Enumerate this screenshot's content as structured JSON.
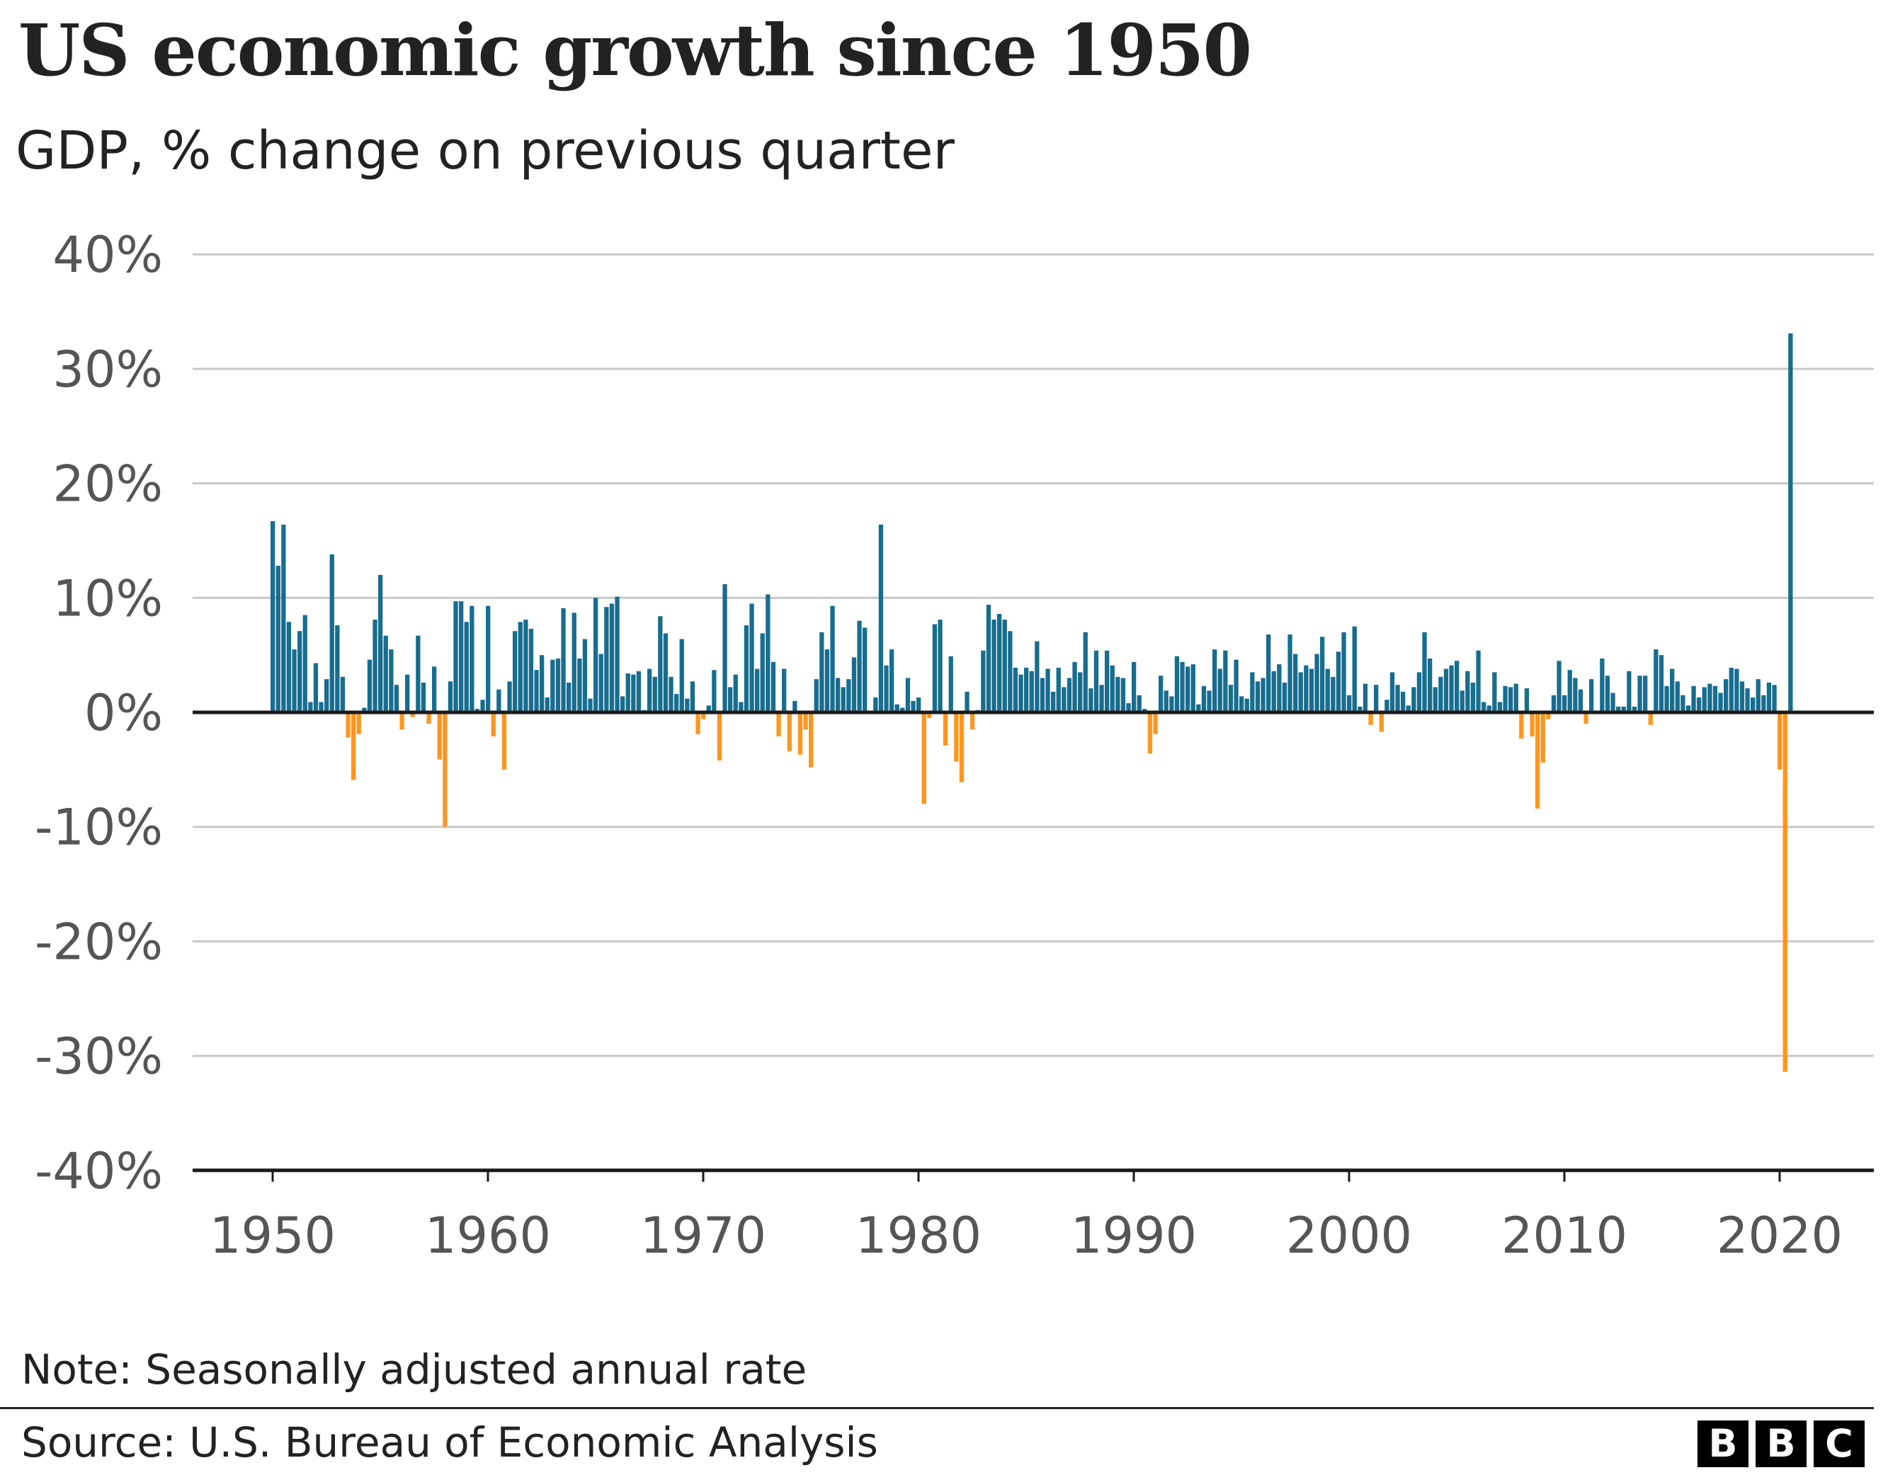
{
  "chart_data": {
    "type": "bar",
    "title": "US economic growth since 1950",
    "subtitle": "GDP, % change on previous quarter",
    "xlabel": "",
    "ylabel": "",
    "ylim": [
      -40,
      40
    ],
    "yticks": [
      "40%",
      "30%",
      "20%",
      "10%",
      "0%",
      "-10%",
      "-20%",
      "-30%",
      "-40%"
    ],
    "ytick_values": [
      40,
      30,
      20,
      10,
      0,
      -10,
      -20,
      -30,
      -40
    ],
    "xticks": [
      "1950",
      "1960",
      "1970",
      "1980",
      "1990",
      "2000",
      "2010",
      "2020"
    ],
    "grid": true,
    "start": "1950 Q1",
    "frequency": "quarterly",
    "colors": {
      "positive": "#176d8e",
      "negative": "#fd961f",
      "grid": "#c8c8c8",
      "axis": "#1a1a1a"
    },
    "values": [
      16.7,
      12.8,
      16.4,
      7.9,
      5.5,
      7.1,
      8.5,
      0.9,
      4.3,
      0.9,
      2.9,
      13.8,
      7.6,
      3.1,
      -2.2,
      -5.9,
      -1.9,
      0.4,
      4.6,
      8.1,
      12.0,
      6.7,
      5.5,
      2.4,
      -1.5,
      3.3,
      -0.4,
      6.7,
      2.6,
      -1.0,
      4.0,
      -4.1,
      -10.0,
      2.7,
      9.7,
      9.7,
      7.9,
      9.3,
      0.3,
      1.1,
      9.3,
      -2.1,
      2.0,
      -5.0,
      2.7,
      7.1,
      7.9,
      8.1,
      7.3,
      3.7,
      5.0,
      1.3,
      4.6,
      4.7,
      9.1,
      2.6,
      8.7,
      4.7,
      6.4,
      1.2,
      10.0,
      5.1,
      9.2,
      9.5,
      10.1,
      1.4,
      3.4,
      3.3,
      3.6,
      0.2,
      3.8,
      3.1,
      8.4,
      6.9,
      3.1,
      1.6,
      6.4,
      1.2,
      2.7,
      -1.9,
      -0.6,
      0.6,
      3.7,
      -4.2,
      11.2,
      2.2,
      3.3,
      0.9,
      7.6,
      9.5,
      3.8,
      6.9,
      10.3,
      4.4,
      -2.1,
      3.8,
      -3.4,
      1.0,
      -3.7,
      -1.5,
      -4.8,
      2.9,
      7.0,
      5.5,
      9.3,
      3.0,
      2.2,
      2.9,
      4.8,
      8.0,
      7.4,
      0.0,
      1.3,
      16.4,
      4.1,
      5.5,
      0.7,
      0.4,
      3.0,
      1.0,
      1.3,
      -8.0,
      -0.5,
      7.7,
      8.1,
      -2.9,
      4.9,
      -4.3,
      -6.1,
      1.8,
      -1.5,
      0.2,
      5.4,
      9.4,
      8.1,
      8.6,
      8.1,
      7.1,
      3.9,
      3.3,
      3.9,
      3.6,
      6.2,
      3.0,
      3.8,
      1.8,
      3.9,
      2.2,
      3.0,
      4.4,
      3.5,
      7.0,
      2.1,
      5.4,
      2.4,
      5.4,
      4.1,
      3.1,
      3.0,
      0.8,
      4.4,
      1.5,
      0.3,
      -3.6,
      -1.9,
      3.2,
      1.9,
      1.4,
      4.9,
      4.4,
      4.0,
      4.2,
      0.7,
      2.3,
      1.9,
      5.5,
      3.8,
      5.4,
      2.4,
      4.6,
      1.4,
      1.2,
      3.5,
      2.7,
      3.0,
      6.8,
      3.6,
      4.2,
      2.6,
      6.8,
      5.1,
      3.5,
      4.1,
      3.8,
      5.1,
      6.6,
      3.8,
      3.1,
      5.3,
      7.0,
      1.5,
      7.5,
      0.5,
      2.5,
      -1.1,
      2.4,
      -1.7,
      1.1,
      3.5,
      2.4,
      1.8,
      0.6,
      2.2,
      3.5,
      7.0,
      4.7,
      2.2,
      3.1,
      3.8,
      4.1,
      4.5,
      1.9,
      3.6,
      2.6,
      5.4,
      0.9,
      0.6,
      3.5,
      0.9,
      2.3,
      2.2,
      2.5,
      -2.3,
      2.1,
      -2.1,
      -8.4,
      -4.4,
      -0.6,
      1.5,
      4.5,
      1.5,
      3.7,
      3.0,
      2.0,
      -1.0,
      2.9,
      -0.1,
      4.7,
      3.2,
      1.7,
      0.5,
      0.5,
      3.6,
      0.5,
      3.2,
      3.2,
      -1.1,
      5.5,
      5.0,
      2.3,
      3.8,
      2.7,
      1.5,
      0.6,
      2.3,
      1.3,
      2.2,
      2.5,
      2.3,
      1.7,
      2.9,
      3.9,
      3.8,
      2.7,
      2.1,
      1.3,
      2.9,
      1.5,
      2.6,
      2.4,
      -5.0,
      -31.4,
      33.1
    ]
  },
  "footer": {
    "note": "Note: Seasonally adjusted annual rate",
    "source": "Source: U.S. Bureau of Economic Analysis",
    "logo": [
      "B",
      "B",
      "C"
    ]
  }
}
